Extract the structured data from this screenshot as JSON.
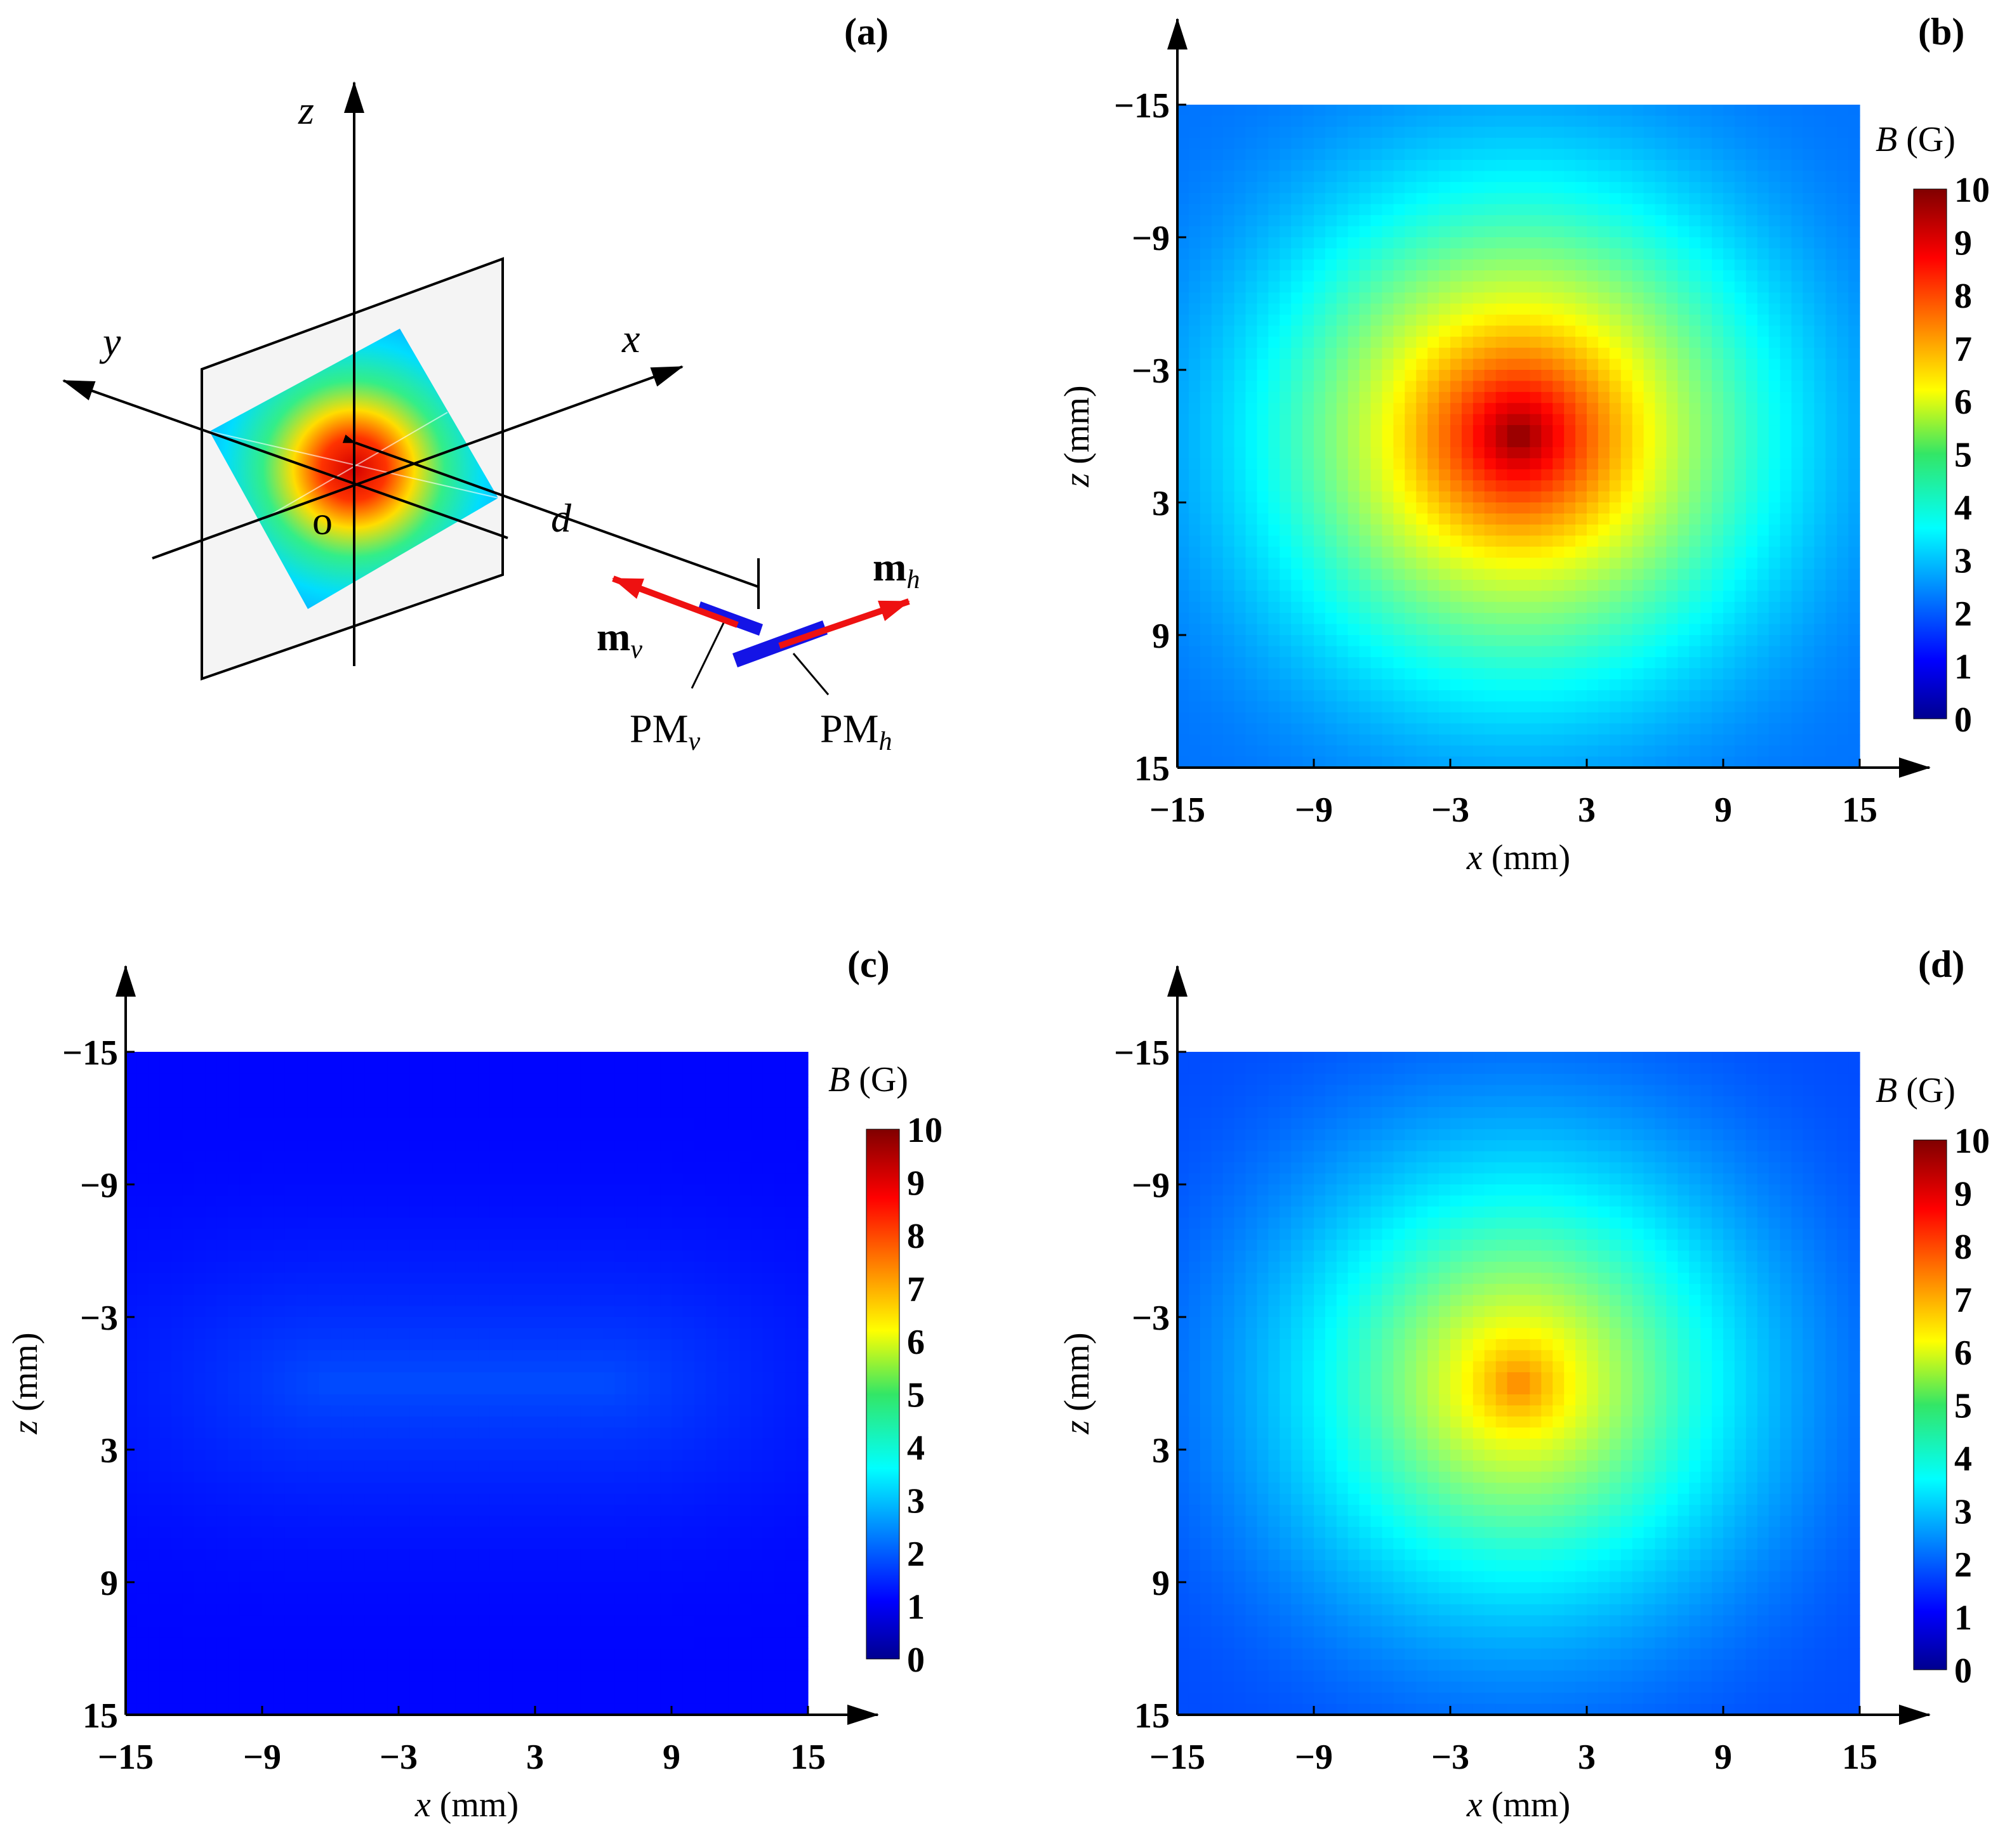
{
  "panels": {
    "a": {
      "label": "(a)",
      "axes": {
        "z": "z",
        "y": "y",
        "x": "x"
      },
      "origin": "o",
      "distance": "d",
      "moment_v": "m",
      "moment_v_sub": "v",
      "moment_h": "m",
      "moment_h_sub": "h",
      "magnet_v": "PM",
      "magnet_v_sub": "v",
      "magnet_h": "PM",
      "magnet_h_sub": "h",
      "magnet_color": "#1414e6",
      "arrow_color": "#ee1111"
    },
    "b": {
      "label": "(b)"
    },
    "c": {
      "label": "(c)"
    },
    "d": {
      "label": "(d)"
    }
  },
  "chart_data": [
    {
      "panel": "b",
      "type": "heatmap",
      "title": "",
      "xlabel_var": "x",
      "xlabel_unit": " (mm)",
      "ylabel_var": "z",
      "ylabel_unit": " (mm)",
      "xlim": [
        -15,
        15
      ],
      "ylim": [
        -15,
        15
      ],
      "xticks": [
        "−15",
        "−9",
        "−3",
        "3",
        "9",
        "15"
      ],
      "yticks": [
        "−15",
        "−9",
        "−3",
        "3",
        "9",
        "15"
      ],
      "tick_values": [
        -15,
        -9,
        -3,
        3,
        9,
        15
      ],
      "peak_value": 10.0,
      "peak_center": [
        0,
        0
      ],
      "shape": "circular",
      "edge_value": 2.4,
      "colorbar": {
        "title_var": "B",
        "title_unit": " (G)",
        "min": 0,
        "max": 10,
        "ticks": [
          "10",
          "9",
          "8",
          "7",
          "6",
          "5",
          "4",
          "3",
          "2",
          "1",
          "0"
        ]
      }
    },
    {
      "panel": "c",
      "type": "heatmap",
      "title": "",
      "xlabel_var": "x",
      "xlabel_unit": " (mm)",
      "ylabel_var": "z",
      "ylabel_unit": " (mm)",
      "xlim": [
        -15,
        15
      ],
      "ylim": [
        -15,
        15
      ],
      "xticks": [
        "−15",
        "−9",
        "−3",
        "3",
        "9",
        "15"
      ],
      "yticks": [
        "−15",
        "−9",
        "−3",
        "3",
        "9",
        "15"
      ],
      "tick_values": [
        -15,
        -9,
        -3,
        3,
        9,
        15
      ],
      "peak_value": 2.0,
      "peak_center": [
        0,
        0
      ],
      "shape": "elongated-horizontal",
      "edge_value": 1.3,
      "colorbar": {
        "title_var": "B",
        "title_unit": " (G)",
        "min": 0,
        "max": 10,
        "ticks": [
          "10",
          "9",
          "8",
          "7",
          "6",
          "5",
          "4",
          "3",
          "2",
          "1",
          "0"
        ]
      }
    },
    {
      "panel": "d",
      "type": "heatmap",
      "title": "",
      "xlabel_var": "x",
      "xlabel_unit": " (mm)",
      "ylabel_var": "z",
      "ylabel_unit": " (mm)",
      "xlim": [
        -15,
        15
      ],
      "ylim": [
        -15,
        15
      ],
      "xticks": [
        "−15",
        "−9",
        "−3",
        "3",
        "9",
        "15"
      ],
      "yticks": [
        "−15",
        "−9",
        "−3",
        "3",
        "9",
        "15"
      ],
      "tick_values": [
        -15,
        -9,
        -3,
        3,
        9,
        15
      ],
      "peak_value": 7.5,
      "peak_center": [
        0,
        0
      ],
      "shape": "circular",
      "edge_value": 2.0,
      "colorbar": {
        "title_var": "B",
        "title_unit": " (G)",
        "min": 0,
        "max": 10,
        "ticks": [
          "10",
          "9",
          "8",
          "7",
          "6",
          "5",
          "4",
          "3",
          "2",
          "1",
          "0"
        ]
      }
    }
  ]
}
